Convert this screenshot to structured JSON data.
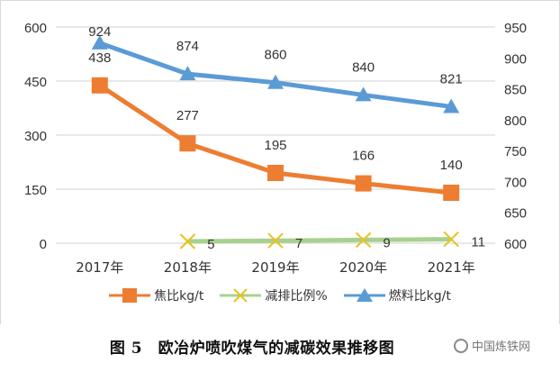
{
  "chart_data": {
    "type": "line",
    "categories": [
      "2017年",
      "2018年",
      "2019年",
      "2020年",
      "2021年"
    ],
    "y_left": {
      "ticks": [
        "0",
        "150",
        "300",
        "450",
        "600"
      ],
      "range": [
        0,
        600
      ]
    },
    "y_right": {
      "ticks": [
        "600",
        "650",
        "700",
        "750",
        "800",
        "850",
        "900",
        "950"
      ],
      "range": [
        600,
        950
      ]
    },
    "series": [
      {
        "name": "焦比kg/t",
        "axis": "left",
        "color": "#ED7D31",
        "marker": "square",
        "values": [
          438,
          277,
          195,
          166,
          140
        ],
        "labels": [
          "438",
          "277",
          "195",
          "166",
          "140"
        ]
      },
      {
        "name": "减排比例%",
        "axis": "left",
        "color": "#A9D18E",
        "marker_color": "#E8C21C",
        "marker": "x",
        "values": [
          null,
          5,
          7,
          9,
          11
        ],
        "labels": [
          "",
          "5",
          "7",
          "9",
          "11"
        ]
      },
      {
        "name": "燃料比kg/t",
        "axis": "right",
        "color": "#5B9BD5",
        "marker": "triangle",
        "values": [
          924,
          874,
          860,
          840,
          821
        ],
        "labels": [
          "924",
          "874",
          "860",
          "840",
          "821"
        ]
      }
    ]
  },
  "caption": "图 5　欧冶炉喷吹煤气的减碳效果推移图",
  "watermark": "中国炼铁网"
}
